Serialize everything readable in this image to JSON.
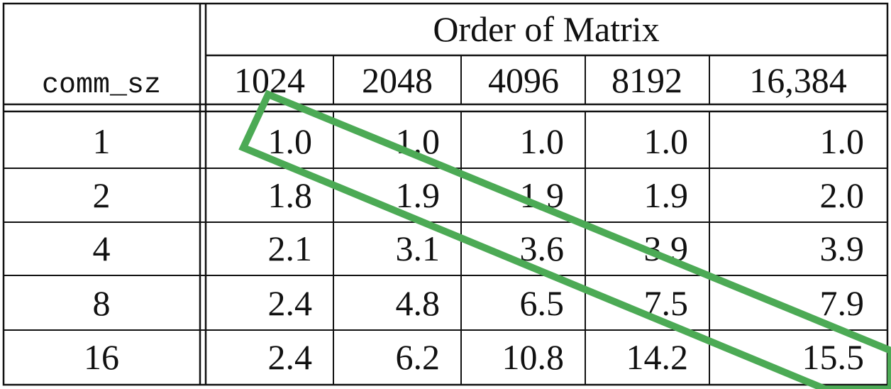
{
  "table": {
    "group_header": "Order of Matrix",
    "row_header_label": "comm_sz",
    "columns": [
      "1024",
      "2048",
      "4096",
      "8192",
      "16,384"
    ],
    "rows": [
      {
        "comm_sz": "1",
        "values": [
          "1.0",
          "1.0",
          "1.0",
          "1.0",
          "1.0"
        ]
      },
      {
        "comm_sz": "2",
        "values": [
          "1.8",
          "1.9",
          "1.9",
          "1.9",
          "2.0"
        ]
      },
      {
        "comm_sz": "4",
        "values": [
          "2.1",
          "3.1",
          "3.6",
          "3.9",
          "3.9"
        ]
      },
      {
        "comm_sz": "8",
        "values": [
          "2.4",
          "4.8",
          "6.5",
          "7.5",
          "7.9"
        ]
      },
      {
        "comm_sz": "16",
        "values": [
          "2.4",
          "6.2",
          "10.8",
          "14.2",
          "15.5"
        ]
      }
    ]
  },
  "annotation": {
    "shape": "rotated rectangle highlighting the diagonal",
    "color": "#4caa55"
  }
}
